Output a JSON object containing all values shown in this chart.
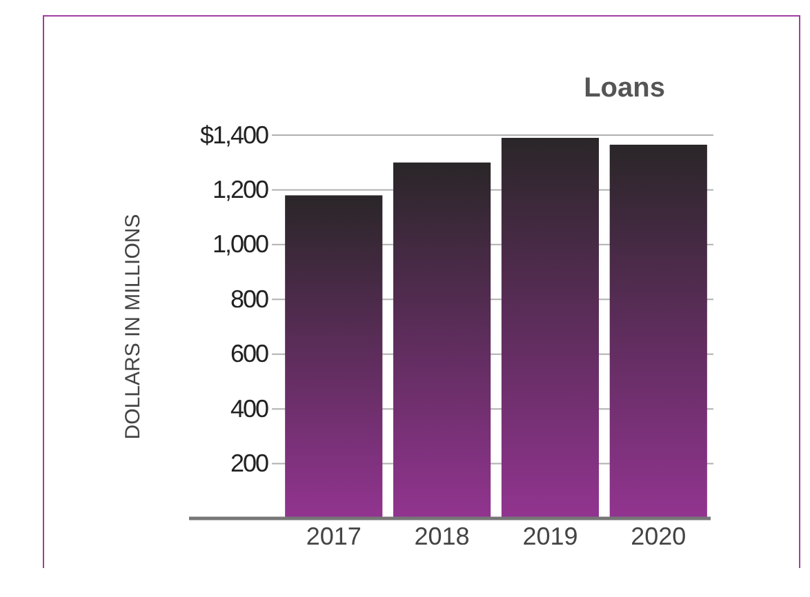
{
  "chart_data": {
    "type": "bar",
    "title": "Loans",
    "ylabel": "DOLLARS IN MILLIONS",
    "categories": [
      "2017",
      "2018",
      "2019",
      "2020"
    ],
    "values": [
      1180,
      1300,
      1390,
      1365
    ],
    "color": "#923490",
    "ylim": [
      0,
      1400
    ],
    "yticks": [
      200,
      400,
      600,
      800,
      {
        "value": 1000,
        "label": "1,000"
      },
      {
        "value": 1200,
        "label": "1,200"
      },
      {
        "value": 1400,
        "label": "$1,400"
      }
    ],
    "grid": "y"
  }
}
